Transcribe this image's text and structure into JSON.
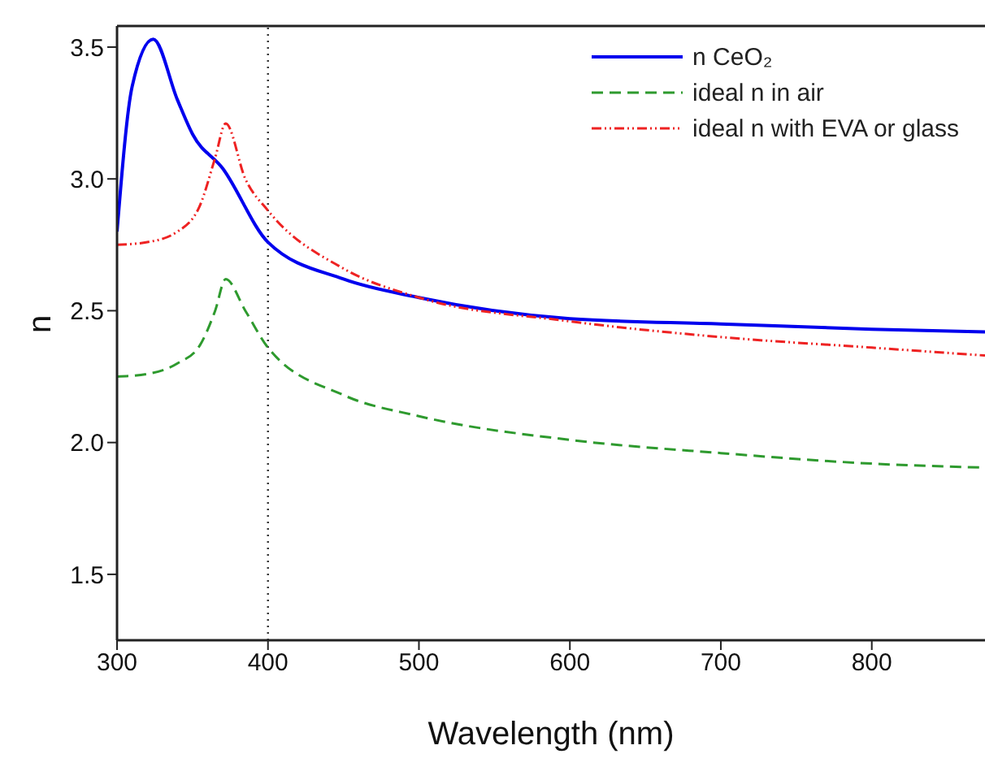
{
  "chart_data": {
    "type": "line",
    "xlabel": "Wavelength (nm)",
    "ylabel": "n",
    "xlim": [
      300,
      875
    ],
    "xticks": [
      300,
      400,
      500,
      600,
      700,
      800
    ],
    "ylim": [
      1.25,
      3.58
    ],
    "yticks": [
      {
        "value": 1.5,
        "label": "1.5"
      },
      {
        "value": 2,
        "label": "2.0"
      },
      {
        "value": 2.5,
        "label": "2.5"
      },
      {
        "value": 3,
        "label": "3.0"
      },
      {
        "value": 3.5,
        "label": "3.5"
      }
    ],
    "grid": false,
    "legend": "top right",
    "marker": "none",
    "series": [
      {
        "name": "n CeO₂",
        "color": "#0000ee",
        "line_style": "solid",
        "x": [
          300,
          310,
          324,
          340,
          350,
          370,
          400,
          450,
          500,
          600,
          700,
          800,
          875
        ],
        "values": [
          2.8,
          3.35,
          3.53,
          3.3,
          3.17,
          3.04,
          2.76,
          2.62,
          2.55,
          2.47,
          2.45,
          2.43,
          2.42
        ]
      },
      {
        "name": "ideal n in air",
        "color": "#2e9a2e",
        "line_style": "dashed",
        "x": [
          300,
          320,
          340,
          355,
          365,
          372,
          385,
          400,
          450,
          500,
          600,
          700,
          800,
          875
        ],
        "values": [
          2.25,
          2.26,
          2.3,
          2.37,
          2.5,
          2.62,
          2.5,
          2.36,
          2.18,
          2.1,
          2.01,
          1.96,
          1.92,
          1.905
        ]
      },
      {
        "name": "ideal n with EVA or glass",
        "color": "#ee2222",
        "line_style": "dotted",
        "x": [
          300,
          320,
          340,
          355,
          365,
          372,
          385,
          400,
          450,
          500,
          600,
          700,
          800,
          875
        ],
        "values": [
          2.75,
          2.76,
          2.8,
          2.9,
          3.08,
          3.21,
          3.0,
          2.88,
          2.66,
          2.55,
          2.46,
          2.4,
          2.36,
          2.33
        ]
      }
    ],
    "ref_lines": [
      {
        "axis": "x",
        "value": 400,
        "color": "#333333",
        "line_style": "dotted"
      }
    ]
  }
}
